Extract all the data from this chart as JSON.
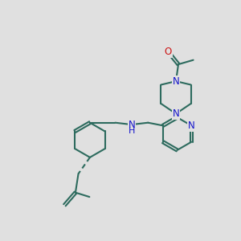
{
  "bg_color": "#e0e0e0",
  "bond_color": "#2d6b5e",
  "N_color": "#1414cc",
  "O_color": "#cc1414",
  "bond_width": 1.5,
  "font_size_atom": 8.5,
  "fig_size": [
    3.0,
    3.0
  ],
  "dpi": 100,
  "xlim": [
    0,
    10
  ],
  "ylim": [
    0,
    10
  ]
}
